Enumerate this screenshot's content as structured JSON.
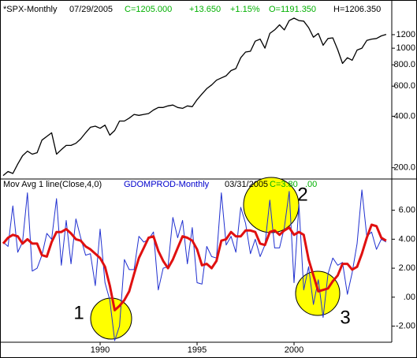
{
  "chart_data": [
    {
      "type": "line",
      "log_scale": true,
      "header": [
        {
          "text": "*SPX-Monthly",
          "color": "#000000"
        },
        {
          "text": "07/29/2005",
          "color": "#000000"
        },
        {
          "text": "C=1205.000",
          "color": "#00b000"
        },
        {
          "text": "+13.650",
          "color": "#00b000"
        },
        {
          "text": "+1.15%",
          "color": "#00b000"
        },
        {
          "text": "O=1191.350",
          "color": "#00b000"
        },
        {
          "text": "H=1206.350",
          "color": "#000000"
        }
      ],
      "x": [
        1985,
        1985.25,
        1985.5,
        1985.75,
        1986,
        1986.25,
        1986.5,
        1986.75,
        1987,
        1987.25,
        1987.5,
        1987.75,
        1988,
        1988.25,
        1988.5,
        1988.75,
        1989,
        1989.25,
        1989.5,
        1989.75,
        1990,
        1990.25,
        1990.5,
        1990.75,
        1991,
        1991.25,
        1991.5,
        1991.75,
        1992,
        1992.25,
        1992.5,
        1992.75,
        1993,
        1993.25,
        1993.5,
        1993.75,
        1994,
        1994.25,
        1994.5,
        1994.75,
        1995,
        1995.25,
        1995.5,
        1995.75,
        1996,
        1996.25,
        1996.5,
        1996.75,
        1997,
        1997.25,
        1997.5,
        1997.75,
        1998,
        1998.25,
        1998.5,
        1998.75,
        1999,
        1999.25,
        1999.5,
        1999.75,
        2000,
        2000.25,
        2000.5,
        2000.75,
        2001,
        2001.25,
        2001.5,
        2001.75,
        2002,
        2002.25,
        2002.5,
        2002.75,
        2003,
        2003.25,
        2003.5,
        2003.75,
        2004,
        2004.25,
        2004.5,
        2004.75
      ],
      "series": [
        {
          "name": "SPX",
          "color": "#000000",
          "values": [
            180,
            190,
            185,
            210,
            235,
            250,
            240,
            245,
            290,
            305,
            320,
            240,
            255,
            270,
            270,
            278,
            295,
            320,
            345,
            350,
            340,
            355,
            310,
            330,
            375,
            375,
            390,
            410,
            405,
            410,
            415,
            435,
            450,
            450,
            460,
            465,
            450,
            445,
            460,
            455,
            500,
            540,
            580,
            610,
            650,
            670,
            690,
            740,
            760,
            880,
            950,
            960,
            1100,
            1130,
            1000,
            1220,
            1280,
            1370,
            1280,
            1450,
            1500,
            1450,
            1440,
            1320,
            1160,
            1220,
            1040,
            1140,
            1150,
            980,
            815,
            880,
            850,
            975,
            1000,
            1110,
            1130,
            1140,
            1180,
            1205
          ]
        }
      ],
      "xlim": [
        1985.04,
        2005.04
      ],
      "ylim": [
        170,
        1815
      ],
      "yticks": [
        {
          "value": 200,
          "label": "200.0"
        },
        {
          "value": 400,
          "label": "400.0"
        },
        {
          "value": 600,
          "label": "600.0"
        },
        {
          "value": 800,
          "label": "800.0"
        },
        1000,
        1200
      ]
    },
    {
      "type": "line",
      "header": [
        {
          "text": "Mov Avg 1 line(Close,4,0)",
          "color": "#000000"
        },
        {
          "text": "GDOMPROD-Monthly",
          "color": "#0000cc"
        },
        {
          "text": "03/31/2005",
          "color": "#000000"
        },
        {
          "text": "C=3.80",
          "color": "#00b000"
        },
        {
          "text": ".00",
          "color": "#00b000"
        }
      ],
      "x": [
        1985,
        1985.25,
        1985.5,
        1985.75,
        1986,
        1986.25,
        1986.5,
        1986.75,
        1987,
        1987.25,
        1987.5,
        1987.75,
        1988,
        1988.25,
        1988.5,
        1988.75,
        1989,
        1989.25,
        1989.5,
        1989.75,
        1990,
        1990.25,
        1990.5,
        1990.75,
        1991,
        1991.25,
        1991.5,
        1991.75,
        1992,
        1992.25,
        1992.5,
        1992.75,
        1993,
        1993.25,
        1993.5,
        1993.75,
        1994,
        1994.25,
        1994.5,
        1994.75,
        1995,
        1995.25,
        1995.5,
        1995.75,
        1996,
        1996.25,
        1996.5,
        1996.75,
        1997,
        1997.25,
        1997.5,
        1997.75,
        1998,
        1998.25,
        1998.5,
        1998.75,
        1999,
        1999.25,
        1999.5,
        1999.75,
        2000,
        2000.25,
        2000.5,
        2000.75,
        2001,
        2001.25,
        2001.5,
        2001.75,
        2002,
        2002.25,
        2002.5,
        2002.75,
        2003,
        2003.25,
        2003.5,
        2003.75,
        2004,
        2004.25,
        2004.5,
        2004.75
      ],
      "series": [
        {
          "name": "GDOMPROD",
          "color": "#2030d0",
          "width": 1,
          "values": [
            3.8,
            3.5,
            6.3,
            3.1,
            3.8,
            7.2,
            1.8,
            2.0,
            2.9,
            4.4,
            4.0,
            6.8,
            2.2,
            5.3,
            2.3,
            5.4,
            4.1,
            2.9,
            3.0,
            0.8,
            4.7,
            1.0,
            -0.2,
            -3.0,
            -2.0,
            2.6,
            1.9,
            1.9,
            4.2,
            3.8,
            4.0,
            4.5,
            0.5,
            2.0,
            2.1,
            5.5,
            4.1,
            5.3,
            2.3,
            4.8,
            1.0,
            0.9,
            3.5,
            2.8,
            2.7,
            7.2,
            3.6,
            4.2,
            3.1,
            6.2,
            5.1,
            3.0,
            4.0,
            2.8,
            3.6,
            6.7,
            3.4,
            3.4,
            4.8,
            7.3,
            1.0,
            6.4,
            0.5,
            2.1,
            -0.5,
            1.2,
            -1.4,
            1.6,
            2.7,
            2.2,
            2.4,
            0.2,
            1.7,
            3.7,
            7.4,
            4.2,
            4.5,
            3.3,
            4.0,
            3.8
          ]
        },
        {
          "name": "Mov Avg",
          "color": "#e01010",
          "width": 3,
          "values": [
            3.7,
            4.1,
            4.3,
            4.2,
            3.7,
            4.0,
            3.7,
            3.7,
            2.9,
            2.8,
            3.8,
            4.5,
            4.5,
            4.7,
            4.4,
            4.0,
            3.9,
            3.5,
            3.3,
            3.0,
            2.7,
            2.1,
            0.8,
            -0.9,
            -0.6,
            -0.2,
            0.4,
            1.6,
            2.7,
            3.4,
            4.1,
            4.2,
            3.2,
            2.5,
            2.0,
            2.6,
            3.4,
            4.2,
            4.1,
            3.9,
            3.3,
            2.2,
            2.3,
            2.0,
            2.5,
            3.9,
            4.0,
            4.5,
            4.2,
            4.2,
            4.6,
            4.6,
            4.5,
            3.7,
            3.6,
            4.5,
            4.6,
            4.3,
            4.6,
            4.8,
            4.3,
            4.5,
            4.3,
            2.6,
            1.5,
            0.4,
            0.5,
            0.6,
            1.1,
            1.5,
            2.3,
            2.3,
            1.9,
            2.1,
            3.0,
            4.1,
            5.0,
            4.9,
            4.1,
            3.9
          ]
        }
      ],
      "xlim": [
        1985.04,
        2005.04
      ],
      "ylim": [
        -3.0,
        8.1
      ],
      "xticks": [
        1990,
        1995,
        2000
      ],
      "yticks": [
        {
          "value": 6,
          "label": "6.00"
        },
        {
          "value": 4,
          "label": "4.00"
        },
        {
          "value": 2,
          "label": "2.00"
        },
        {
          "value": 0,
          "label": ".00"
        },
        {
          "value": -2,
          "label": "-2.00"
        }
      ],
      "annotations": [
        "1",
        "2",
        "3"
      ]
    }
  ]
}
